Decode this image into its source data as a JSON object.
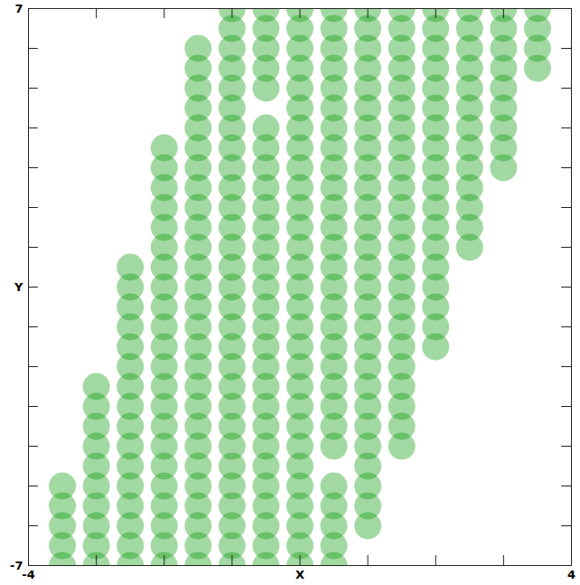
{
  "chart_data": {
    "type": "scatter",
    "color": "#0a9a0a",
    "xlim": [
      -4,
      4
    ],
    "ylim": [
      -7,
      7
    ],
    "xticks": [
      -4,
      {
        "value": 0,
        "label": "X"
      },
      4
    ],
    "yticks": [
      -7,
      {
        "value": 0,
        "label": "Y"
      },
      7
    ],
    "xminor_ticks": [
      -3,
      -2,
      -1,
      1,
      2,
      3
    ],
    "yminor_ticks": [
      -6,
      -5,
      -4,
      -3,
      -2,
      -1,
      1,
      2,
      3,
      4,
      5,
      6
    ],
    "points": [
      [
        -3.5,
        -7
      ],
      [
        -3,
        -7
      ],
      [
        -2.5,
        -7
      ],
      [
        -2,
        -7
      ],
      [
        -1.5,
        -7
      ],
      [
        -1,
        -7
      ],
      [
        -0.5,
        -7
      ],
      [
        0,
        -7
      ],
      [
        0.5,
        -7
      ],
      [
        -3.5,
        -6.5
      ],
      [
        -3,
        -6.5
      ],
      [
        -2.5,
        -6.5
      ],
      [
        -2,
        -6.5
      ],
      [
        -1.5,
        -6.5
      ],
      [
        -1,
        -6.5
      ],
      [
        -0.5,
        -6.5
      ],
      [
        0,
        -6.5
      ],
      [
        0.5,
        -6.5
      ],
      [
        -3.5,
        -6
      ],
      [
        -3,
        -6
      ],
      [
        -2.5,
        -6
      ],
      [
        -2,
        -6
      ],
      [
        -1.5,
        -6
      ],
      [
        -1,
        -6
      ],
      [
        -0.5,
        -6
      ],
      [
        0,
        -6
      ],
      [
        0.5,
        -6
      ],
      [
        1,
        -6
      ],
      [
        -3.5,
        -5.5
      ],
      [
        -3,
        -5.5
      ],
      [
        -2.5,
        -5.5
      ],
      [
        -2,
        -5.5
      ],
      [
        -1.5,
        -5.5
      ],
      [
        -1,
        -5.5
      ],
      [
        -0.5,
        -5.5
      ],
      [
        0,
        -5.5
      ],
      [
        0.5,
        -5.5
      ],
      [
        1,
        -5.5
      ],
      [
        -3.5,
        -5
      ],
      [
        -3,
        -5
      ],
      [
        -2.5,
        -5
      ],
      [
        -2,
        -5
      ],
      [
        -1.5,
        -5
      ],
      [
        -1,
        -5
      ],
      [
        -0.5,
        -5
      ],
      [
        0,
        -5
      ],
      [
        0.5,
        -5
      ],
      [
        1,
        -5
      ],
      [
        -3,
        -4.5
      ],
      [
        -2.5,
        -4.5
      ],
      [
        -2,
        -4.5
      ],
      [
        -1.5,
        -4.5
      ],
      [
        -1,
        -4.5
      ],
      [
        -0.5,
        -4.5
      ],
      [
        0,
        -4.5
      ],
      [
        1,
        -4.5
      ],
      [
        -3,
        -4
      ],
      [
        -2.5,
        -4
      ],
      [
        -2,
        -4
      ],
      [
        -1.5,
        -4
      ],
      [
        -1,
        -4
      ],
      [
        -0.5,
        -4
      ],
      [
        0,
        -4
      ],
      [
        0.5,
        -4
      ],
      [
        1,
        -4
      ],
      [
        1.5,
        -4
      ],
      [
        -3,
        -3.5
      ],
      [
        -2.5,
        -3.5
      ],
      [
        -2,
        -3.5
      ],
      [
        -1.5,
        -3.5
      ],
      [
        -1,
        -3.5
      ],
      [
        -0.5,
        -3.5
      ],
      [
        0,
        -3.5
      ],
      [
        0.5,
        -3.5
      ],
      [
        1,
        -3.5
      ],
      [
        1.5,
        -3.5
      ],
      [
        -3,
        -3
      ],
      [
        -2.5,
        -3
      ],
      [
        -2,
        -3
      ],
      [
        -1.5,
        -3
      ],
      [
        -1,
        -3
      ],
      [
        -0.5,
        -3
      ],
      [
        0,
        -3
      ],
      [
        0.5,
        -3
      ],
      [
        1,
        -3
      ],
      [
        1.5,
        -3
      ],
      [
        -3,
        -2.5
      ],
      [
        -2.5,
        -2.5
      ],
      [
        -2,
        -2.5
      ],
      [
        -1.5,
        -2.5
      ],
      [
        -1,
        -2.5
      ],
      [
        -0.5,
        -2.5
      ],
      [
        0,
        -2.5
      ],
      [
        0.5,
        -2.5
      ],
      [
        1,
        -2.5
      ],
      [
        1.5,
        -2.5
      ],
      [
        -2.5,
        -2
      ],
      [
        -2,
        -2
      ],
      [
        -1.5,
        -2
      ],
      [
        -1,
        -2
      ],
      [
        -0.5,
        -2
      ],
      [
        0,
        -2
      ],
      [
        0.5,
        -2
      ],
      [
        1,
        -2
      ],
      [
        1.5,
        -2
      ],
      [
        -2.5,
        -1.5
      ],
      [
        -2,
        -1.5
      ],
      [
        -1.5,
        -1.5
      ],
      [
        -1,
        -1.5
      ],
      [
        -0.5,
        -1.5
      ],
      [
        0,
        -1.5
      ],
      [
        0.5,
        -1.5
      ],
      [
        1,
        -1.5
      ],
      [
        1.5,
        -1.5
      ],
      [
        2,
        -1.5
      ],
      [
        -2.5,
        -1
      ],
      [
        -2,
        -1
      ],
      [
        -1.5,
        -1
      ],
      [
        -1,
        -1
      ],
      [
        -0.5,
        -1
      ],
      [
        0,
        -1
      ],
      [
        0.5,
        -1
      ],
      [
        1,
        -1
      ],
      [
        1.5,
        -1
      ],
      [
        2,
        -1
      ],
      [
        -2.5,
        -0.5
      ],
      [
        -2,
        -0.5
      ],
      [
        -1.5,
        -0.5
      ],
      [
        -1,
        -0.5
      ],
      [
        -0.5,
        -0.5
      ],
      [
        0,
        -0.5
      ],
      [
        0.5,
        -0.5
      ],
      [
        1,
        -0.5
      ],
      [
        1.5,
        -0.5
      ],
      [
        2,
        -0.5
      ],
      [
        -2.5,
        0
      ],
      [
        -2,
        0
      ],
      [
        -1.5,
        0
      ],
      [
        -1,
        0
      ],
      [
        -0.5,
        0
      ],
      [
        0,
        0
      ],
      [
        0.5,
        0
      ],
      [
        1,
        0
      ],
      [
        1.5,
        0
      ],
      [
        2,
        0
      ],
      [
        -2.5,
        0.5
      ],
      [
        -2,
        0.5
      ],
      [
        -1.5,
        0.5
      ],
      [
        -1,
        0.5
      ],
      [
        -0.5,
        0.5
      ],
      [
        0,
        0.5
      ],
      [
        0.5,
        0.5
      ],
      [
        1,
        0.5
      ],
      [
        1.5,
        0.5
      ],
      [
        2,
        0.5
      ],
      [
        -2,
        1
      ],
      [
        -1.5,
        1
      ],
      [
        -1,
        1
      ],
      [
        -0.5,
        1
      ],
      [
        0,
        1
      ],
      [
        0.5,
        1
      ],
      [
        1,
        1
      ],
      [
        1.5,
        1
      ],
      [
        2,
        1
      ],
      [
        2.5,
        1
      ],
      [
        -2,
        1.5
      ],
      [
        -1.5,
        1.5
      ],
      [
        -1,
        1.5
      ],
      [
        -0.5,
        1.5
      ],
      [
        0,
        1.5
      ],
      [
        0.5,
        1.5
      ],
      [
        1,
        1.5
      ],
      [
        1.5,
        1.5
      ],
      [
        2,
        1.5
      ],
      [
        2.5,
        1.5
      ],
      [
        -2,
        2
      ],
      [
        -1.5,
        2
      ],
      [
        -1,
        2
      ],
      [
        -0.5,
        2
      ],
      [
        0,
        2
      ],
      [
        0.5,
        2
      ],
      [
        1,
        2
      ],
      [
        1.5,
        2
      ],
      [
        2,
        2
      ],
      [
        2.5,
        2
      ],
      [
        -2,
        2.5
      ],
      [
        -1.5,
        2.5
      ],
      [
        -1,
        2.5
      ],
      [
        -0.5,
        2.5
      ],
      [
        0,
        2.5
      ],
      [
        0.5,
        2.5
      ],
      [
        1,
        2.5
      ],
      [
        1.5,
        2.5
      ],
      [
        2,
        2.5
      ],
      [
        2.5,
        2.5
      ],
      [
        -2,
        3
      ],
      [
        -1.5,
        3
      ],
      [
        -1,
        3
      ],
      [
        -0.5,
        3
      ],
      [
        0,
        3
      ],
      [
        0.5,
        3
      ],
      [
        1,
        3
      ],
      [
        1.5,
        3
      ],
      [
        2,
        3
      ],
      [
        2.5,
        3
      ],
      [
        3,
        3
      ],
      [
        -2,
        3.5
      ],
      [
        -1.5,
        3.5
      ],
      [
        -1,
        3.5
      ],
      [
        -0.5,
        3.5
      ],
      [
        0,
        3.5
      ],
      [
        0.5,
        3.5
      ],
      [
        1,
        3.5
      ],
      [
        1.5,
        3.5
      ],
      [
        2,
        3.5
      ],
      [
        2.5,
        3.5
      ],
      [
        3,
        3.5
      ],
      [
        -1.5,
        4
      ],
      [
        -1,
        4
      ],
      [
        -0.5,
        4
      ],
      [
        0,
        4
      ],
      [
        0.5,
        4
      ],
      [
        1,
        4
      ],
      [
        1.5,
        4
      ],
      [
        2,
        4
      ],
      [
        2.5,
        4
      ],
      [
        3,
        4
      ],
      [
        -1.5,
        4.5
      ],
      [
        -1,
        4.5
      ],
      [
        0,
        4.5
      ],
      [
        0.5,
        4.5
      ],
      [
        1,
        4.5
      ],
      [
        1.5,
        4.5
      ],
      [
        2,
        4.5
      ],
      [
        2.5,
        4.5
      ],
      [
        3,
        4.5
      ],
      [
        -1.5,
        5
      ],
      [
        -1,
        5
      ],
      [
        -0.5,
        5
      ],
      [
        0,
        5
      ],
      [
        0.5,
        5
      ],
      [
        1,
        5
      ],
      [
        1.5,
        5
      ],
      [
        2,
        5
      ],
      [
        2.5,
        5
      ],
      [
        3,
        5
      ],
      [
        -1.5,
        5.5
      ],
      [
        -1,
        5.5
      ],
      [
        -0.5,
        5.5
      ],
      [
        0,
        5.5
      ],
      [
        0.5,
        5.5
      ],
      [
        1,
        5.5
      ],
      [
        1.5,
        5.5
      ],
      [
        2,
        5.5
      ],
      [
        2.5,
        5.5
      ],
      [
        3,
        5.5
      ],
      [
        3.5,
        5.5
      ],
      [
        -1.5,
        6
      ],
      [
        -1,
        6
      ],
      [
        -0.5,
        6
      ],
      [
        0,
        6
      ],
      [
        0.5,
        6
      ],
      [
        1,
        6
      ],
      [
        1.5,
        6
      ],
      [
        2,
        6
      ],
      [
        2.5,
        6
      ],
      [
        3,
        6
      ],
      [
        3.5,
        6
      ],
      [
        -1,
        6.5
      ],
      [
        -0.5,
        6.5
      ],
      [
        0,
        6.5
      ],
      [
        0.5,
        6.5
      ],
      [
        1,
        6.5
      ],
      [
        1.5,
        6.5
      ],
      [
        2,
        6.5
      ],
      [
        2.5,
        6.5
      ],
      [
        3,
        6.5
      ],
      [
        3.5,
        6.5
      ],
      [
        -1,
        7
      ],
      [
        -0.5,
        7
      ],
      [
        0,
        7
      ],
      [
        0.5,
        7
      ],
      [
        1,
        7
      ],
      [
        1.5,
        7
      ],
      [
        2,
        7
      ],
      [
        2.5,
        7
      ],
      [
        3,
        7
      ],
      [
        3.5,
        7
      ]
    ]
  }
}
